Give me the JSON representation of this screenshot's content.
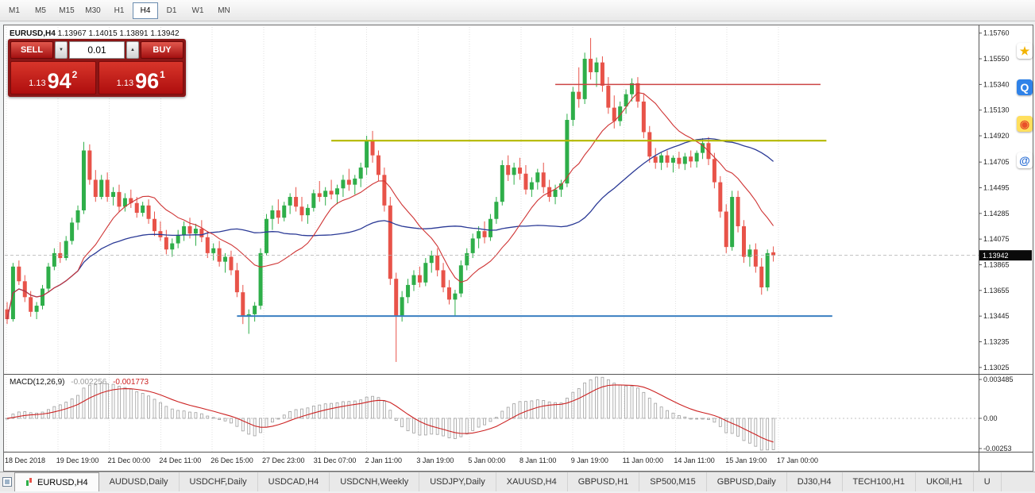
{
  "toolbar": {
    "timeframes": [
      {
        "label": "M1"
      },
      {
        "label": "M5"
      },
      {
        "label": "M15"
      },
      {
        "label": "M30"
      },
      {
        "label": "H1"
      },
      {
        "label": "H4",
        "active": true
      },
      {
        "label": "D1"
      },
      {
        "label": "W1"
      },
      {
        "label": "MN"
      }
    ]
  },
  "chart_title": {
    "symbol": "EURUSD,H4",
    "values": "1.13967 1.14015 1.13891 1.13942"
  },
  "trade_panel": {
    "sell_label": "SELL",
    "buy_label": "BUY",
    "lot_size": "0.01",
    "sell_price": {
      "prefix": "1.13",
      "big": "94",
      "sup": "2"
    },
    "buy_price": {
      "prefix": "1.13",
      "big": "96",
      "sup": "1"
    }
  },
  "side_icons": [
    {
      "name": "star-shortcut-icon",
      "glyph": "★",
      "fg": "#f2b300",
      "bg": "#ffffff"
    },
    {
      "name": "messenger-shortcut-icon",
      "glyph": "Q",
      "fg": "#ffffff",
      "bg": "#2f82e8"
    },
    {
      "name": "browser-shortcut-icon",
      "glyph": "◉",
      "fg": "#e8502a",
      "bg": "#ffdf5e"
    },
    {
      "name": "mail-shortcut-icon",
      "glyph": "@",
      "fg": "#2b6fd4",
      "bg": "#ffffff"
    }
  ],
  "tabs": [
    {
      "label": "EURUSD,H4",
      "active": true
    },
    {
      "label": "AUDUSD,Daily"
    },
    {
      "label": "USDCHF,Daily"
    },
    {
      "label": "USDCAD,H4"
    },
    {
      "label": "USDCNH,Weekly"
    },
    {
      "label": "USDJPY,Daily"
    },
    {
      "label": "XAUUSD,H4"
    },
    {
      "label": "GBPUSD,H1"
    },
    {
      "label": "SP500,M15"
    },
    {
      "label": "GBPUSD,Daily"
    },
    {
      "label": "DJ30,H4"
    },
    {
      "label": "TECH100,H1"
    },
    {
      "label": "UKOil,H1"
    },
    {
      "label": "U"
    }
  ],
  "chart_data": {
    "type": "candlestick",
    "symbol": "EURUSD",
    "timeframe": "H4",
    "current_price": "1.13942",
    "y_range": {
      "max": 1.1581,
      "min": 1.12985
    },
    "y_ticks": [
      "1.15760",
      "1.15550",
      "1.15340",
      "1.15130",
      "1.14920",
      "1.14705",
      "1.14495",
      "1.14285",
      "1.14075",
      "1.13865",
      "1.13655",
      "1.13445",
      "1.13235",
      "1.13025"
    ],
    "x_labels": [
      "18 Dec 2018",
      "19 Dec 19:00",
      "21 Dec 00:00",
      "24 Dec 11:00",
      "26 Dec 15:00",
      "27 Dec 23:00",
      "31 Dec 07:00",
      "2 Jan 11:00",
      "3 Jan 19:00",
      "5 Jan 00:00",
      "8 Jan 11:00",
      "9 Jan 19:00",
      "11 Jan 00:00",
      "14 Jan 11:00",
      "15 Jan 19:00",
      "17 Jan 00:00"
    ],
    "colors": {
      "up": "#2eae49",
      "down": "#e85349",
      "background": "#ffffff"
    },
    "overlays": [
      {
        "name": "ma-fast-line",
        "type": "sma",
        "period": 13,
        "color": "#cf3434"
      },
      {
        "name": "ma-slow-line",
        "type": "sma",
        "period": 34,
        "color": "#2b3a96"
      }
    ],
    "hlines": [
      {
        "name": "resistance-line-red",
        "price": 1.1534,
        "color": "#cc4444",
        "width": 1.6,
        "from": 93,
        "to": 138
      },
      {
        "name": "resistance-line-yellow",
        "price": 1.1488,
        "color": "#b4b800",
        "width": 2.2,
        "from": 55,
        "to": 139
      },
      {
        "name": "support-line-blue",
        "price": 1.13445,
        "color": "#3a7fc1",
        "width": 2.0,
        "from": 39,
        "to": 140
      }
    ],
    "macd": {
      "label_text": "MACD(12,26,9)",
      "main_value": "-0.002256",
      "signal_value": "-0.001773",
      "axis_labels": [
        "0.003485",
        "0.00",
        "-0.00253"
      ],
      "fast": 12,
      "slow": 26,
      "signal": 9,
      "histogram_color": "#9e9e9e",
      "signal_color": "#cc2222"
    },
    "candles": [
      [
        1.135,
        1.1356,
        1.1338,
        1.1342
      ],
      [
        1.1342,
        1.1388,
        1.134,
        1.1385
      ],
      [
        1.1385,
        1.139,
        1.137,
        1.1373
      ],
      [
        1.1373,
        1.1378,
        1.1356,
        1.136
      ],
      [
        1.136,
        1.1365,
        1.1344,
        1.1348
      ],
      [
        1.1348,
        1.1356,
        1.1342,
        1.1353
      ],
      [
        1.1353,
        1.137,
        1.135,
        1.1367
      ],
      [
        1.1367,
        1.1388,
        1.1364,
        1.1385
      ],
      [
        1.1385,
        1.14,
        1.1382,
        1.1396
      ],
      [
        1.1396,
        1.1405,
        1.1388,
        1.1392
      ],
      [
        1.1392,
        1.141,
        1.139,
        1.1406
      ],
      [
        1.1406,
        1.1425,
        1.1403,
        1.1421
      ],
      [
        1.1421,
        1.1435,
        1.1415,
        1.1431
      ],
      [
        1.1431,
        1.1487,
        1.1428,
        1.148
      ],
      [
        1.148,
        1.1485,
        1.1452,
        1.1456
      ],
      [
        1.1456,
        1.1464,
        1.1438,
        1.1442
      ],
      [
        1.1442,
        1.146,
        1.144,
        1.1456
      ],
      [
        1.1456,
        1.1462,
        1.1438,
        1.1442
      ],
      [
        1.1442,
        1.145,
        1.1435,
        1.1446
      ],
      [
        1.1446,
        1.1452,
        1.143,
        1.1434
      ],
      [
        1.1434,
        1.1445,
        1.143,
        1.1441
      ],
      [
        1.1441,
        1.1448,
        1.1433,
        1.1437
      ],
      [
        1.1437,
        1.1442,
        1.1425,
        1.1429
      ],
      [
        1.1429,
        1.1438,
        1.1426,
        1.1435
      ],
      [
        1.1435,
        1.144,
        1.142,
        1.1424
      ],
      [
        1.1424,
        1.143,
        1.141,
        1.1414
      ],
      [
        1.1414,
        1.1422,
        1.1406,
        1.1409
      ],
      [
        1.1409,
        1.1415,
        1.1395,
        1.1399
      ],
      [
        1.1399,
        1.1408,
        1.1393,
        1.1404
      ],
      [
        1.1404,
        1.1415,
        1.14,
        1.1411
      ],
      [
        1.1411,
        1.1422,
        1.1406,
        1.1418
      ],
      [
        1.1418,
        1.1425,
        1.1408,
        1.1412
      ],
      [
        1.1412,
        1.142,
        1.1402,
        1.1416
      ],
      [
        1.1416,
        1.1423,
        1.1405,
        1.1409
      ],
      [
        1.1409,
        1.1414,
        1.1392,
        1.1396
      ],
      [
        1.1396,
        1.1404,
        1.139,
        1.14
      ],
      [
        1.14,
        1.1406,
        1.1385,
        1.1389
      ],
      [
        1.1389,
        1.1396,
        1.138,
        1.1393
      ],
      [
        1.1393,
        1.1398,
        1.1378,
        1.1382
      ],
      [
        1.1382,
        1.1388,
        1.136,
        1.1364
      ],
      [
        1.1364,
        1.137,
        1.1338,
        1.1344
      ],
      [
        1.1344,
        1.135,
        1.133,
        1.1346
      ],
      [
        1.1346,
        1.1356,
        1.134,
        1.1353
      ],
      [
        1.1353,
        1.14,
        1.135,
        1.1396
      ],
      [
        1.1396,
        1.1428,
        1.1394,
        1.1424
      ],
      [
        1.1424,
        1.1435,
        1.1415,
        1.1431
      ],
      [
        1.1431,
        1.144,
        1.142,
        1.1425
      ],
      [
        1.1425,
        1.1438,
        1.1422,
        1.1435
      ],
      [
        1.1435,
        1.1445,
        1.1428,
        1.1442
      ],
      [
        1.1442,
        1.145,
        1.143,
        1.1434
      ],
      [
        1.1434,
        1.1442,
        1.1422,
        1.1427
      ],
      [
        1.1427,
        1.1436,
        1.142,
        1.1433
      ],
      [
        1.1433,
        1.1448,
        1.143,
        1.1445
      ],
      [
        1.1445,
        1.1455,
        1.1438,
        1.1442
      ],
      [
        1.1442,
        1.145,
        1.1435,
        1.1447
      ],
      [
        1.1447,
        1.1456,
        1.144,
        1.1444
      ],
      [
        1.1444,
        1.1452,
        1.1436,
        1.1449
      ],
      [
        1.1449,
        1.146,
        1.1442,
        1.1456
      ],
      [
        1.1456,
        1.1465,
        1.1447,
        1.1452
      ],
      [
        1.1452,
        1.146,
        1.1444,
        1.1457
      ],
      [
        1.1457,
        1.147,
        1.145,
        1.1466
      ],
      [
        1.1466,
        1.1492,
        1.146,
        1.1488
      ],
      [
        1.1488,
        1.1496,
        1.147,
        1.1476
      ],
      [
        1.1476,
        1.148,
        1.1455,
        1.146
      ],
      [
        1.146,
        1.1466,
        1.143,
        1.1435
      ],
      [
        1.1435,
        1.1442,
        1.137,
        1.1375
      ],
      [
        1.1375,
        1.138,
        1.1307,
        1.1345
      ],
      [
        1.1345,
        1.1365,
        1.134,
        1.136
      ],
      [
        1.136,
        1.1375,
        1.1355,
        1.137
      ],
      [
        1.137,
        1.1382,
        1.1365,
        1.1378
      ],
      [
        1.1378,
        1.1385,
        1.1368,
        1.1372
      ],
      [
        1.1372,
        1.1392,
        1.1369,
        1.1388
      ],
      [
        1.1388,
        1.1398,
        1.138,
        1.1394
      ],
      [
        1.1394,
        1.14,
        1.1377,
        1.1382
      ],
      [
        1.1382,
        1.1388,
        1.1364,
        1.1368
      ],
      [
        1.1368,
        1.1374,
        1.1354,
        1.1358
      ],
      [
        1.1358,
        1.1366,
        1.1345,
        1.1363
      ],
      [
        1.1363,
        1.139,
        1.136,
        1.1386
      ],
      [
        1.1386,
        1.14,
        1.1382,
        1.1396
      ],
      [
        1.1396,
        1.1412,
        1.1392,
        1.1408
      ],
      [
        1.1408,
        1.1418,
        1.14,
        1.1414
      ],
      [
        1.1414,
        1.1422,
        1.1404,
        1.1409
      ],
      [
        1.1409,
        1.1428,
        1.1406,
        1.1424
      ],
      [
        1.1424,
        1.1442,
        1.142,
        1.1438
      ],
      [
        1.1438,
        1.1472,
        1.1435,
        1.1468
      ],
      [
        1.1468,
        1.1476,
        1.1455,
        1.146
      ],
      [
        1.146,
        1.147,
        1.1452,
        1.1466
      ],
      [
        1.1466,
        1.1474,
        1.1456,
        1.1461
      ],
      [
        1.1461,
        1.1468,
        1.1444,
        1.1448
      ],
      [
        1.1448,
        1.1458,
        1.1442,
        1.1454
      ],
      [
        1.1454,
        1.1465,
        1.1448,
        1.1462
      ],
      [
        1.1462,
        1.147,
        1.1445,
        1.145
      ],
      [
        1.145,
        1.1456,
        1.1438,
        1.1442
      ],
      [
        1.1442,
        1.1452,
        1.1436,
        1.1448
      ],
      [
        1.1448,
        1.1456,
        1.1442,
        1.1453
      ],
      [
        1.1453,
        1.151,
        1.145,
        1.1505
      ],
      [
        1.1505,
        1.1532,
        1.15,
        1.1528
      ],
      [
        1.1528,
        1.1548,
        1.1515,
        1.1522
      ],
      [
        1.1522,
        1.156,
        1.1518,
        1.1555
      ],
      [
        1.1555,
        1.1572,
        1.1538,
        1.1544
      ],
      [
        1.1544,
        1.1556,
        1.1532,
        1.1552
      ],
      [
        1.1552,
        1.1557,
        1.1528,
        1.1533
      ],
      [
        1.1533,
        1.154,
        1.151,
        1.1515
      ],
      [
        1.1515,
        1.1525,
        1.1498,
        1.1504
      ],
      [
        1.1504,
        1.152,
        1.15,
        1.1516
      ],
      [
        1.1516,
        1.153,
        1.151,
        1.1526
      ],
      [
        1.1526,
        1.1539,
        1.152,
        1.1535
      ],
      [
        1.1535,
        1.154,
        1.1515,
        1.152
      ],
      [
        1.152,
        1.1526,
        1.149,
        1.1495
      ],
      [
        1.1495,
        1.15,
        1.147,
        1.1475
      ],
      [
        1.1475,
        1.1482,
        1.1465,
        1.147
      ],
      [
        1.147,
        1.1478,
        1.1464,
        1.1476
      ],
      [
        1.1476,
        1.148,
        1.1466,
        1.147
      ],
      [
        1.147,
        1.1476,
        1.1462,
        1.1474
      ],
      [
        1.1474,
        1.1479,
        1.1465,
        1.1469
      ],
      [
        1.1469,
        1.1478,
        1.1464,
        1.1475
      ],
      [
        1.1475,
        1.148,
        1.1466,
        1.1471
      ],
      [
        1.1471,
        1.148,
        1.1466,
        1.1478
      ],
      [
        1.1478,
        1.149,
        1.1473,
        1.1486
      ],
      [
        1.1486,
        1.1491,
        1.1468,
        1.1473
      ],
      [
        1.1473,
        1.1478,
        1.1449,
        1.1454
      ],
      [
        1.1454,
        1.1459,
        1.1425,
        1.143
      ],
      [
        1.143,
        1.1436,
        1.1396,
        1.1401
      ],
      [
        1.1401,
        1.1447,
        1.1398,
        1.1442
      ],
      [
        1.1442,
        1.1447,
        1.1413,
        1.1418
      ],
      [
        1.1418,
        1.1423,
        1.1388,
        1.1393
      ],
      [
        1.1393,
        1.1403,
        1.1385,
        1.1399
      ],
      [
        1.1399,
        1.1404,
        1.138,
        1.1385
      ],
      [
        1.1385,
        1.1392,
        1.1362,
        1.1368
      ],
      [
        1.1368,
        1.1399,
        1.1365,
        1.1396
      ],
      [
        1.13967,
        1.14015,
        1.13891,
        1.13942
      ]
    ]
  }
}
